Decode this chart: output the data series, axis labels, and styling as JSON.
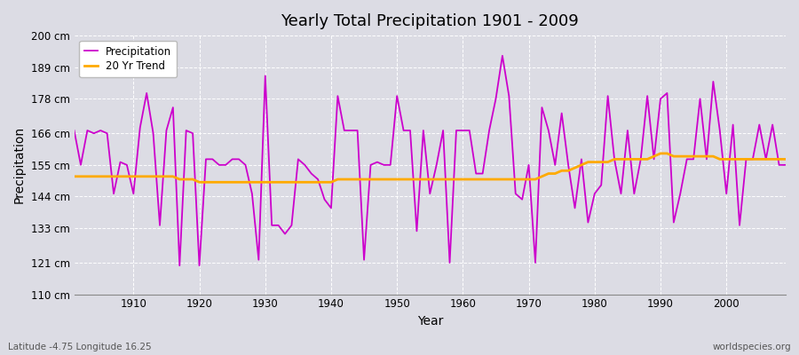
{
  "title": "Yearly Total Precipitation 1901 - 2009",
  "xlabel": "Year",
  "ylabel": "Precipitation",
  "background_color": "#dcdce4",
  "plot_bg_color": "#dcdce4",
  "line_color": "#cc00cc",
  "trend_color": "#ffaa00",
  "ylim": [
    110,
    200
  ],
  "yticks": [
    110,
    121,
    133,
    144,
    155,
    166,
    178,
    189,
    200
  ],
  "ytick_labels": [
    "110 cm",
    "121 cm",
    "133 cm",
    "144 cm",
    "155 cm",
    "166 cm",
    "178 cm",
    "189 cm",
    "200 cm"
  ],
  "years": [
    1901,
    1902,
    1903,
    1904,
    1905,
    1906,
    1907,
    1908,
    1909,
    1910,
    1911,
    1912,
    1913,
    1914,
    1915,
    1916,
    1917,
    1918,
    1919,
    1920,
    1921,
    1922,
    1923,
    1924,
    1925,
    1926,
    1927,
    1928,
    1929,
    1930,
    1931,
    1932,
    1933,
    1934,
    1935,
    1936,
    1937,
    1938,
    1939,
    1940,
    1941,
    1942,
    1943,
    1944,
    1945,
    1946,
    1947,
    1948,
    1949,
    1950,
    1951,
    1952,
    1953,
    1954,
    1955,
    1956,
    1957,
    1958,
    1959,
    1960,
    1961,
    1962,
    1963,
    1964,
    1965,
    1966,
    1967,
    1968,
    1969,
    1970,
    1971,
    1972,
    1973,
    1974,
    1975,
    1976,
    1977,
    1978,
    1979,
    1980,
    1981,
    1982,
    1983,
    1984,
    1985,
    1986,
    1987,
    1988,
    1989,
    1990,
    1991,
    1992,
    1993,
    1994,
    1995,
    1996,
    1997,
    1998,
    1999,
    2000,
    2001,
    2002,
    2003,
    2004,
    2005,
    2006,
    2007,
    2008,
    2009
  ],
  "precipitation": [
    167,
    155,
    167,
    166,
    167,
    166,
    145,
    156,
    155,
    145,
    168,
    180,
    166,
    134,
    167,
    175,
    120,
    167,
    166,
    120,
    157,
    157,
    155,
    155,
    157,
    157,
    155,
    145,
    122,
    186,
    134,
    134,
    131,
    134,
    157,
    155,
    152,
    150,
    143,
    140,
    179,
    167,
    167,
    167,
    122,
    155,
    156,
    155,
    155,
    179,
    167,
    167,
    132,
    167,
    145,
    155,
    167,
    121,
    167,
    167,
    167,
    152,
    152,
    167,
    178,
    193,
    179,
    145,
    143,
    155,
    121,
    175,
    167,
    155,
    173,
    155,
    140,
    157,
    135,
    145,
    148,
    179,
    157,
    145,
    167,
    145,
    157,
    179,
    157,
    178,
    180,
    135,
    145,
    157,
    157,
    178,
    157,
    184,
    167,
    145,
    169,
    134,
    157,
    157,
    169,
    157,
    169,
    155,
    155
  ],
  "trend": [
    151,
    151,
    151,
    151,
    151,
    151,
    151,
    151,
    151,
    151,
    151,
    151,
    151,
    151,
    151,
    151,
    150,
    150,
    150,
    149,
    149,
    149,
    149,
    149,
    149,
    149,
    149,
    149,
    149,
    149,
    149,
    149,
    149,
    149,
    149,
    149,
    149,
    149,
    149,
    149,
    150,
    150,
    150,
    150,
    150,
    150,
    150,
    150,
    150,
    150,
    150,
    150,
    150,
    150,
    150,
    150,
    150,
    150,
    150,
    150,
    150,
    150,
    150,
    150,
    150,
    150,
    150,
    150,
    150,
    150,
    150,
    151,
    152,
    152,
    153,
    153,
    154,
    155,
    156,
    156,
    156,
    156,
    157,
    157,
    157,
    157,
    157,
    157,
    158,
    159,
    159,
    158,
    158,
    158,
    158,
    158,
    158,
    158,
    157,
    157,
    157,
    157,
    157,
    157,
    157,
    157,
    157,
    157,
    157
  ],
  "footer_left": "Latitude -4.75 Longitude 16.25",
  "footer_right": "worldspecies.org",
  "legend_labels": [
    "Precipitation",
    "20 Yr Trend"
  ],
  "xlim_left": 1901,
  "xlim_right": 2009
}
